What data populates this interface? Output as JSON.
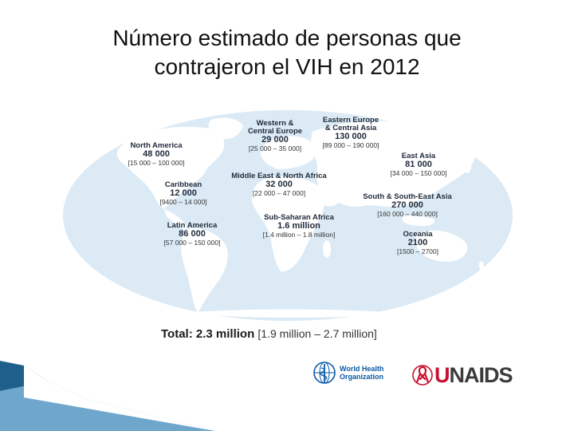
{
  "title_line1": "Número estimado de personas que",
  "title_line2": "contrajeron el VIH en 2012",
  "regions": {
    "western_central_europe": {
      "name": "Western &\nCentral Europe",
      "value": "29 000",
      "range": "[25 000 – 35 000]"
    },
    "eastern_europe_central_asia": {
      "name": "Eastern Europe\n& Central Asia",
      "value": "130 000",
      "range": "[89 000 – 190 000]"
    },
    "north_america": {
      "name": "North America",
      "value": "48 000",
      "range": "[15 000 – 100 000]"
    },
    "east_asia": {
      "name": "East Asia",
      "value": "81 000",
      "range": "[34 000 – 150 000]"
    },
    "middle_east_north_africa": {
      "name": "Middle East & North Africa",
      "value": "32 000",
      "range": "[22 000 – 47 000]"
    },
    "caribbean": {
      "name": "Caribbean",
      "value": "12 000",
      "range": "[9400 – 14 000]"
    },
    "south_southeast_asia": {
      "name": "South & South-East Asia",
      "value": "270 000",
      "range": "[160 000 – 440 000]"
    },
    "subsaharan_africa": {
      "name": "Sub-Saharan Africa",
      "value": "1.6 million",
      "range": "[1.4 million – 1.8 million]"
    },
    "latin_america": {
      "name": "Latin America",
      "value": "86 000",
      "range": "[57 000 – 150 000]"
    },
    "oceania": {
      "name": "Oceania",
      "value": "2100",
      "range": "[1500 – 2700]"
    }
  },
  "total": {
    "label": "Total: 2.3 million",
    "range": "[1.9 million – 2.7 million]"
  },
  "logos": {
    "who_line1": "World Health",
    "who_line2": "Organization",
    "unaids_u": "U",
    "unaids_rest": "NAIDS"
  },
  "colors": {
    "ocean": "#dbeaf5",
    "land": "#ffffff",
    "corner_dark": "#1f5f8b",
    "corner_light": "#6fa6cc",
    "ribbon": "#c8102e"
  }
}
